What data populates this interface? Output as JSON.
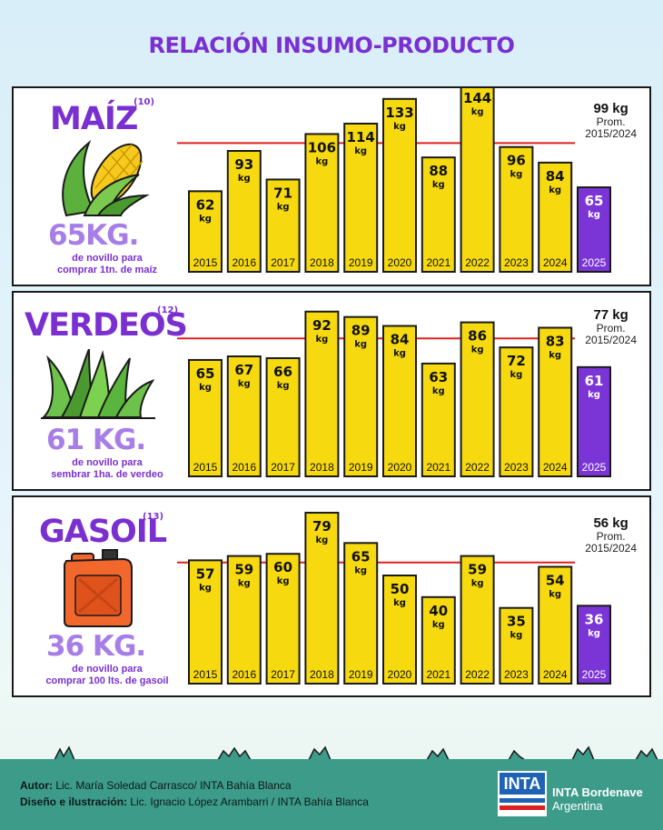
{
  "title": "RELACIÓN INSUMO-PRODUCTO",
  "colors": {
    "bar": "#f6d90f",
    "bar_current": "#7b35d6",
    "avg_line": "#e02020",
    "accent": "#7a2fd0",
    "footer": "#3d9b8a"
  },
  "panels": [
    {
      "name": "MAÍZ",
      "note": "(10)",
      "big": "65KG.",
      "desc1": "de novillo para",
      "desc2": "comprar 1tn. de maíz",
      "avg_value": "99 kg",
      "avg_label1": "Prom.",
      "avg_label2": "2015/2024",
      "icon": "corn-icon"
    },
    {
      "name": "VERDEOS",
      "note": "(12)",
      "big": "61 KG.",
      "desc1": "de novillo para",
      "desc2": "sembrar 1ha. de verdeo",
      "avg_value": "77 kg",
      "avg_label1": "Prom.",
      "avg_label2": "2015/2024",
      "icon": "grass-icon"
    },
    {
      "name": "GASOIL",
      "note": "(13)",
      "big": "36 KG.",
      "desc1": "de novillo para",
      "desc2": "comprar 100 lts. de gasoil",
      "avg_value": "56 kg",
      "avg_label1": "Prom.",
      "avg_label2": "2015/2024",
      "icon": "fuel-can-icon"
    }
  ],
  "chart_data": [
    {
      "type": "bar",
      "categories": [
        "2015",
        "2016",
        "2017",
        "2018",
        "2019",
        "2020",
        "2021",
        "2022",
        "2023",
        "2024",
        "2025"
      ],
      "values": [
        62,
        93,
        71,
        106,
        114,
        133,
        88,
        144,
        96,
        84,
        65
      ],
      "unit": "kg",
      "average": 99,
      "highlight": "2025"
    },
    {
      "type": "bar",
      "categories": [
        "2015",
        "2016",
        "2017",
        "2018",
        "2019",
        "2020",
        "2021",
        "2022",
        "2023",
        "2024",
        "2025"
      ],
      "values": [
        65,
        67,
        66,
        92,
        89,
        84,
        63,
        86,
        72,
        83,
        61
      ],
      "unit": "kg",
      "average": 77,
      "highlight": "2025"
    },
    {
      "type": "bar",
      "categories": [
        "2015",
        "2016",
        "2017",
        "2018",
        "2019",
        "2020",
        "2021",
        "2022",
        "2023",
        "2024",
        "2025"
      ],
      "values": [
        57,
        59,
        60,
        79,
        65,
        50,
        40,
        59,
        35,
        54,
        36
      ],
      "unit": "kg",
      "average": 56,
      "highlight": "2025"
    }
  ],
  "footer": {
    "author_label": "Autor:",
    "author": " Lic. María Soledad Carrasco/ INTA Bahía Blanca",
    "design_label": "Diseño e ilustración:",
    "design": " Lic. Ignacio López Arambarri / INTA Bahía Blanca",
    "logo_text": "INTA",
    "org1": "INTA Bordenave",
    "org2": "Argentina"
  }
}
